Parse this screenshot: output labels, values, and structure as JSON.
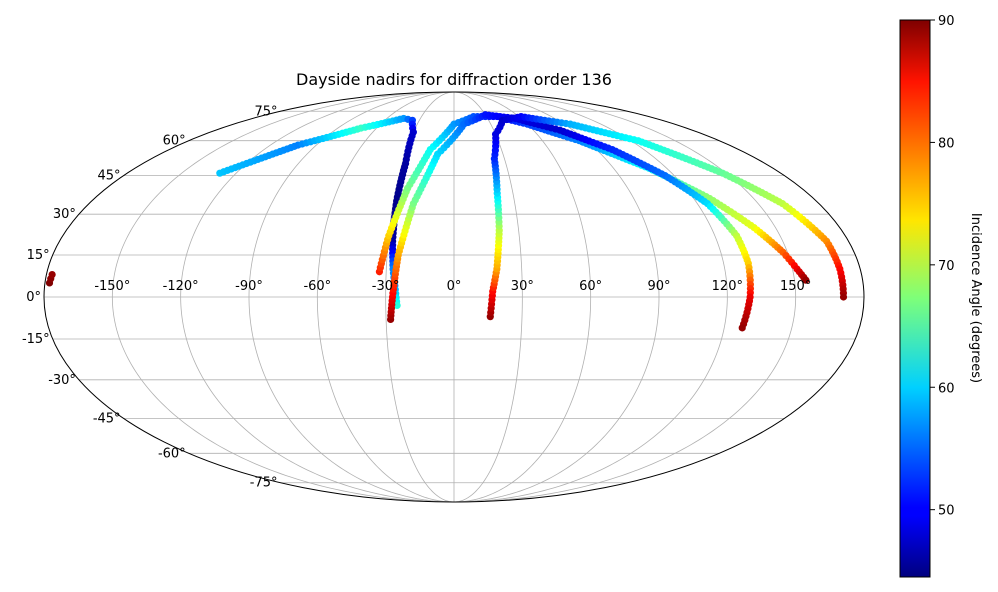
{
  "chart_data": {
    "type": "scatter",
    "projection": "mollweide",
    "title": "Dayside nadirs for diffraction order 136",
    "grid": true,
    "lon_ticks": [
      -150,
      -120,
      -90,
      -60,
      -30,
      0,
      30,
      60,
      90,
      120,
      150
    ],
    "lon_tick_labels": [
      "-150°",
      "-120°",
      "-90°",
      "-60°",
      "-30°",
      "0°",
      "30°",
      "60°",
      "90°",
      "120°",
      "150°"
    ],
    "lat_ticks": [
      75,
      60,
      45,
      30,
      15,
      0,
      -15,
      -30,
      -45,
      -60,
      -75
    ],
    "lat_tick_labels": [
      "75°",
      "60°",
      "45°",
      "30°",
      "15°",
      "0°",
      "-15°",
      "-30°",
      "-45°",
      "-60°",
      "-75°"
    ],
    "colorbar": {
      "label": "Incidence Angle (degrees)",
      "min": 44.5,
      "max": 90,
      "colormap": "jet",
      "ticks": [
        50,
        60,
        70,
        80,
        90
      ],
      "tick_labels": [
        "50",
        "60",
        "70",
        "80",
        "90"
      ]
    },
    "series": [
      {
        "points": [
          [
            -129,
            46,
            59
          ],
          [
            -102,
            58,
            56
          ],
          [
            -72,
            66,
            64
          ],
          [
            -45,
            71,
            57
          ],
          [
            -36,
            70,
            53
          ],
          [
            -30,
            64,
            48
          ],
          [
            -28,
            50,
            46
          ],
          [
            -28.5,
            35,
            45
          ],
          [
            -28,
            20,
            46
          ],
          [
            -27,
            10,
            56
          ],
          [
            -26,
            4,
            57
          ],
          [
            -25,
            -3,
            63
          ]
        ]
      },
      {
        "points": [
          [
            -33,
            9,
            83
          ],
          [
            -30,
            22,
            75
          ],
          [
            -24,
            40,
            67
          ],
          [
            -15,
            56,
            62
          ],
          [
            0,
            68,
            57
          ],
          [
            18,
            72,
            54
          ],
          [
            40,
            72,
            50
          ],
          [
            60,
            68,
            53
          ],
          [
            85,
            60,
            56
          ],
          [
            110,
            48,
            62
          ],
          [
            128,
            36,
            68
          ],
          [
            140,
            25,
            72
          ],
          [
            148,
            16,
            80
          ],
          [
            152,
            10,
            85
          ],
          [
            155,
            6,
            89
          ]
        ]
      },
      {
        "points": [
          [
            -28,
            -8,
            89
          ],
          [
            -27,
            0,
            85
          ],
          [
            -25,
            15,
            77
          ],
          [
            -20,
            34,
            67
          ],
          [
            -10,
            54,
            60
          ],
          [
            8,
            68,
            55
          ],
          [
            30,
            73,
            51
          ],
          [
            55,
            71,
            49
          ],
          [
            80,
            65,
            48
          ],
          [
            100,
            56,
            52
          ],
          [
            115,
            45,
            55
          ],
          [
            125,
            34,
            60
          ],
          [
            130,
            22,
            70
          ],
          [
            131,
            12,
            75
          ],
          [
            130,
            0,
            85
          ],
          [
            128,
            -11,
            89
          ]
        ]
      },
      {
        "points": [
          [
            16,
            -7,
            89
          ],
          [
            17,
            2,
            84
          ],
          [
            19,
            10,
            77
          ],
          [
            21,
            24,
            70
          ],
          [
            22,
            38,
            60
          ],
          [
            24,
            52,
            52
          ],
          [
            30,
            63,
            49
          ],
          [
            42,
            70,
            48
          ],
          [
            62,
            72,
            50
          ],
          [
            95,
            68,
            58
          ],
          [
            125,
            60,
            62
          ],
          [
            148,
            46,
            66
          ],
          [
            162,
            34,
            70
          ],
          [
            170,
            20,
            78
          ],
          [
            171,
            10,
            84
          ],
          [
            171,
            0,
            89
          ]
        ]
      },
      {
        "points": [
          [
            -178,
            5,
            90
          ],
          [
            -177.5,
            8,
            89
          ]
        ]
      }
    ]
  }
}
